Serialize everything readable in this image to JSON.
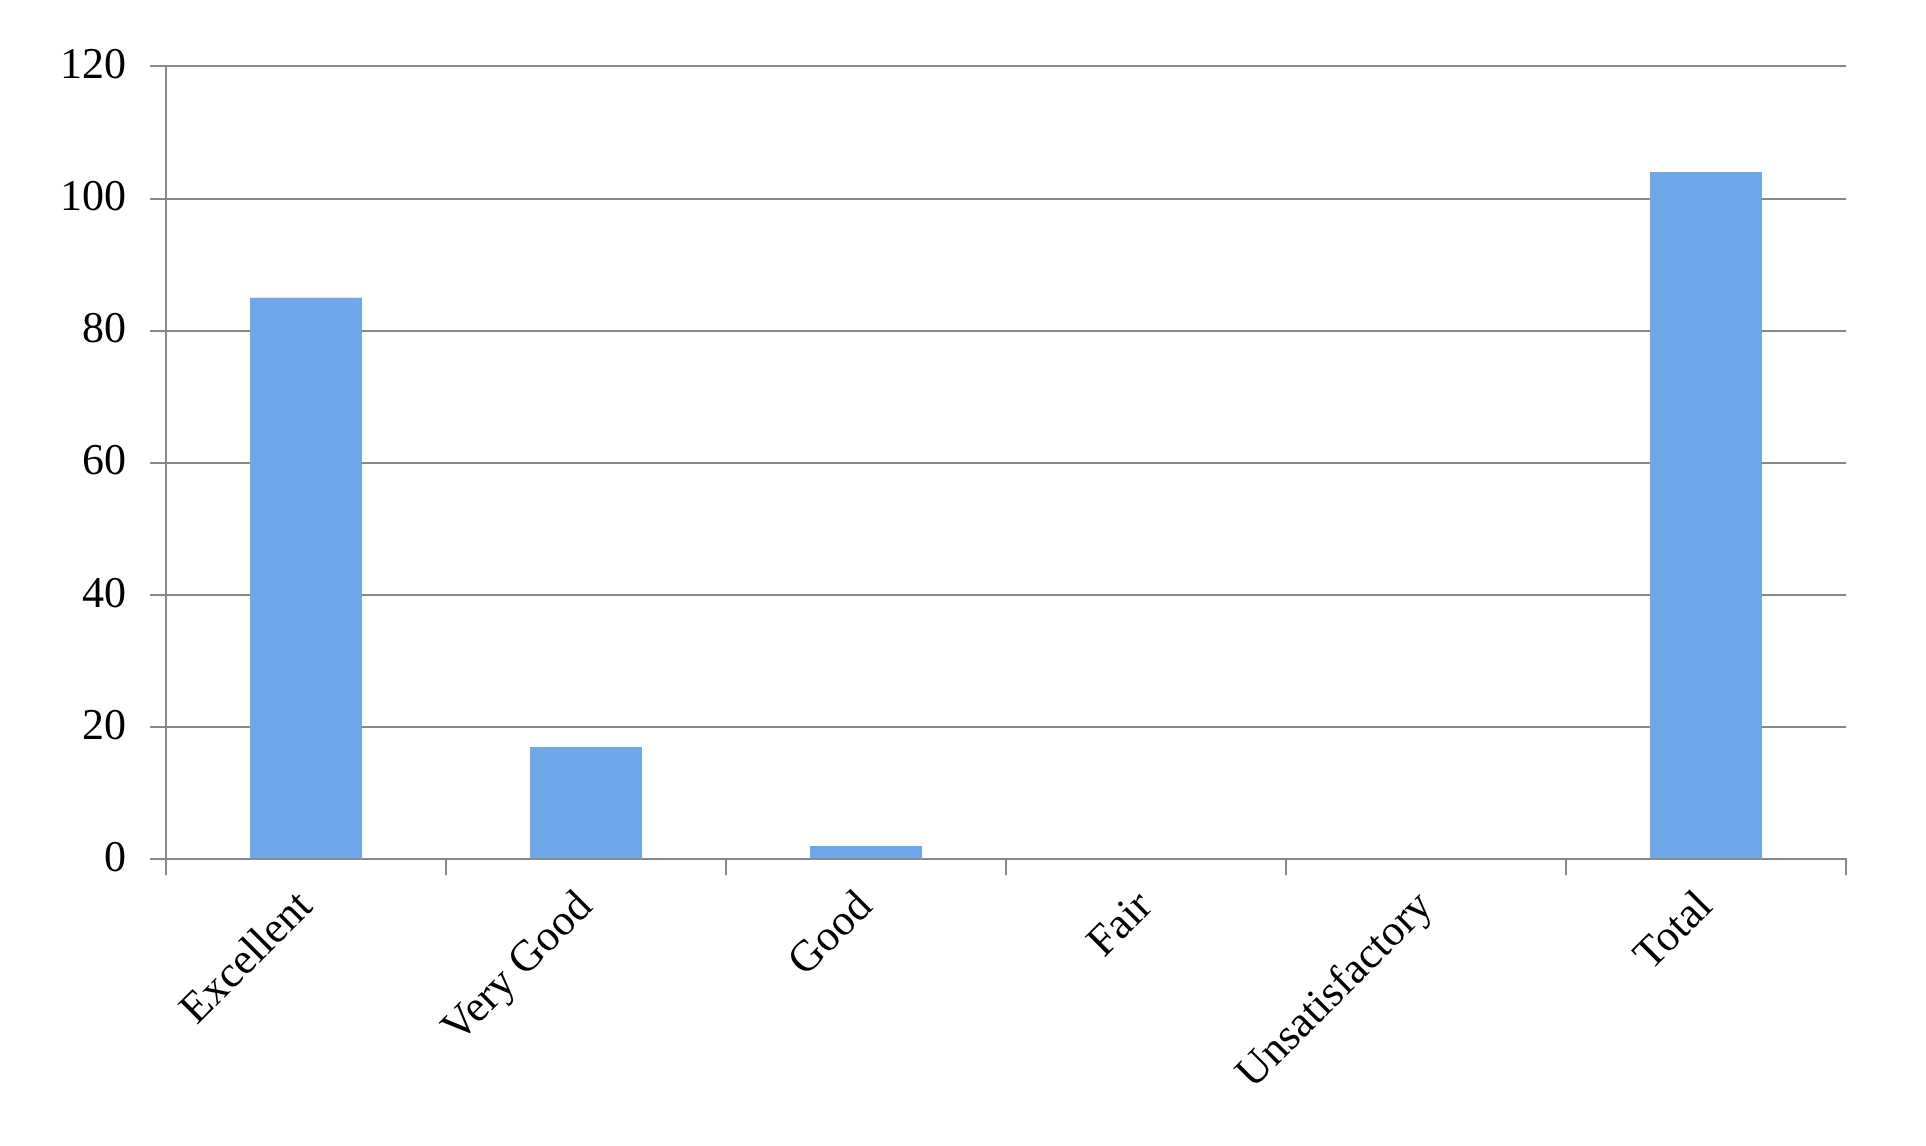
{
  "chart_data": {
    "type": "bar",
    "categories": [
      "Excellent",
      "Very Good",
      "Good",
      "Fair",
      "Unsatisfactory",
      "Total"
    ],
    "values": [
      85,
      17,
      2,
      0,
      0,
      104
    ],
    "color": "#6fa8e8",
    "ylim": [
      0,
      120
    ],
    "yticks": [
      0,
      20,
      40,
      60,
      80,
      100,
      120
    ],
    "grid": "y"
  }
}
